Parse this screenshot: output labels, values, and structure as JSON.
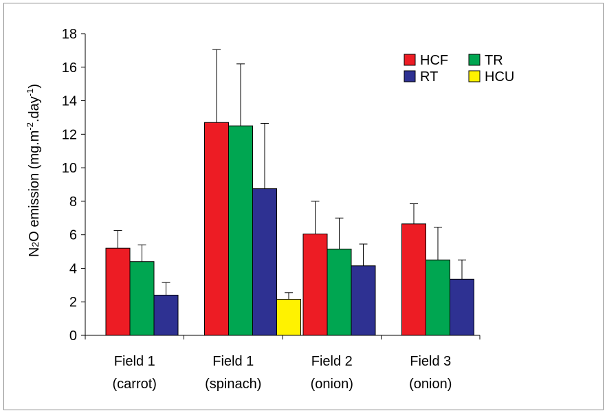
{
  "chart_data": {
    "type": "bar",
    "ylabel": {
      "prefix": "N",
      "sub": "2",
      "mid": "O emission (mg.m",
      "sup1": "-2",
      "mid2": ".day",
      "sup2": "-1",
      "suffix": ")"
    },
    "ylim": [
      0,
      18
    ],
    "yticks": [
      "0",
      "2",
      "4",
      "6",
      "8",
      "10",
      "12",
      "14",
      "16",
      "18"
    ],
    "categories": [
      {
        "line1": "Field 1",
        "line2": "(carrot)"
      },
      {
        "line1": "Field 1",
        "line2": "(spinach)"
      },
      {
        "line1": "Field 2",
        "line2": "(onion)"
      },
      {
        "line1": "Field 3",
        "line2": "(onion)"
      }
    ],
    "series": [
      {
        "name": "HCF",
        "color": "#ed1c24",
        "values": [
          5.2,
          12.7,
          6.05,
          6.65
        ],
        "errors": [
          1.05,
          4.35,
          1.95,
          1.2
        ]
      },
      {
        "name": "TR",
        "color": "#00a651",
        "values": [
          4.4,
          12.5,
          5.15,
          4.5
        ],
        "errors": [
          1.0,
          3.7,
          1.85,
          1.95
        ]
      },
      {
        "name": "RT",
        "color": "#2e3192",
        "values": [
          2.4,
          8.75,
          4.15,
          3.35
        ],
        "errors": [
          0.75,
          3.9,
          1.3,
          1.15
        ]
      },
      {
        "name": "HCU",
        "color": "#fff200",
        "values": [
          null,
          2.15,
          null,
          null
        ],
        "errors": [
          null,
          0.4,
          null,
          null
        ]
      }
    ],
    "legend": {
      "position": "top-right",
      "columns": 2
    },
    "grid": false
  }
}
